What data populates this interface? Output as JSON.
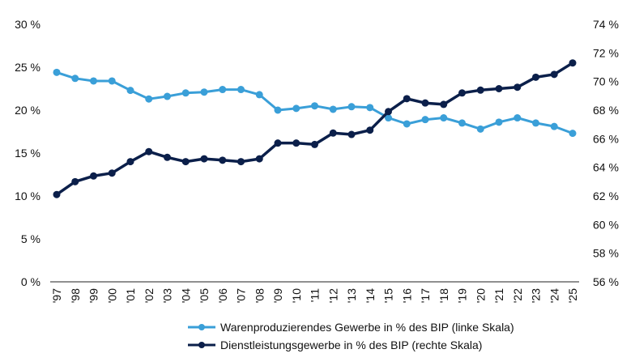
{
  "chart_data": {
    "type": "line",
    "categories": [
      "'97",
      "'98",
      "'99",
      "'00",
      "'01",
      "'02",
      "'03",
      "'04",
      "'05",
      "'06",
      "'07",
      "'08",
      "'09",
      "'10",
      "'11",
      "'12",
      "'13",
      "'14",
      "'15",
      "'16",
      "'17",
      "'18",
      "'19",
      "'20",
      "'21",
      "'22",
      "'23",
      "'24",
      "'25"
    ],
    "y_left": {
      "min": 0,
      "max": 30,
      "step": 5,
      "tick_labels": [
        "0 %",
        "5 %",
        "10 %",
        "15 %",
        "20 %",
        "25 %",
        "30 %"
      ]
    },
    "y_right": {
      "min": 56,
      "max": 74,
      "step": 2,
      "tick_labels": [
        "56 %",
        "58 %",
        "60 %",
        "62 %",
        "64 %",
        "66 %",
        "68 %",
        "70 %",
        "72 %",
        "74 %"
      ]
    },
    "series": [
      {
        "name": "Warenproduzierendes Gewerbe in % des BIP (linke Skala)",
        "axis": "left",
        "color": "#3a9fd8",
        "values": [
          24.4,
          23.7,
          23.4,
          23.4,
          22.3,
          21.3,
          21.6,
          22.0,
          22.1,
          22.4,
          22.4,
          21.8,
          20.0,
          20.2,
          20.5,
          20.1,
          20.4,
          20.3,
          19.1,
          18.4,
          18.9,
          19.1,
          18.5,
          17.8,
          18.6,
          19.1,
          18.5,
          18.1,
          17.3
        ]
      },
      {
        "name": "Dienstleistungsgewerbe in % des BIP (rechte Skala)",
        "axis": "right",
        "color": "#0b1f4a",
        "values": [
          62.1,
          63.0,
          63.4,
          63.6,
          64.4,
          65.1,
          64.7,
          64.4,
          64.6,
          64.5,
          64.4,
          64.6,
          65.7,
          65.7,
          65.6,
          66.4,
          66.3,
          66.6,
          67.9,
          68.8,
          68.5,
          68.4,
          69.2,
          69.4,
          69.5,
          69.6,
          70.3,
          70.5,
          71.3
        ]
      }
    ],
    "grid": false,
    "legend_position": "bottom-center"
  }
}
